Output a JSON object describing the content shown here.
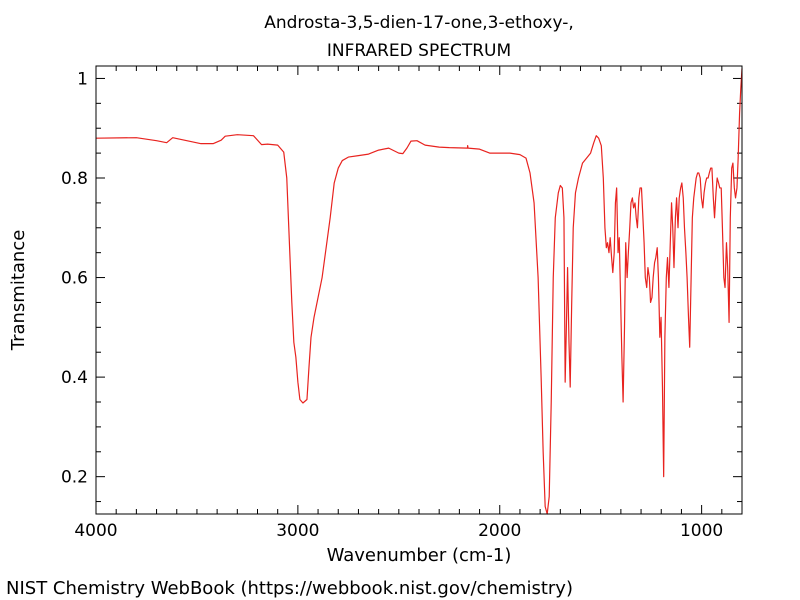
{
  "chart_data": {
    "type": "line",
    "title_line1": "Androsta-3,5-dien-17-one,3-ethoxy-,",
    "title_line2": "INFRARED SPECTRUM",
    "xlabel": "Wavenumber (cm-1)",
    "ylabel": "Transmitance",
    "xlim": [
      4000,
      800
    ],
    "ylim": [
      0.125,
      1.025
    ],
    "x_ticks": [
      4000,
      3000,
      2000,
      1000
    ],
    "x_tick_labels": [
      "4000",
      "3000",
      "2000",
      "1000"
    ],
    "y_ticks": [
      0.2,
      0.4,
      0.6,
      0.8,
      1.0
    ],
    "y_tick_labels": [
      "0.2",
      "0.4",
      "0.6",
      "0.8",
      "1"
    ],
    "grid": false,
    "series": [
      {
        "name": "IR spectrum",
        "color": "#e8231f",
        "points": [
          [
            4000,
            0.88
          ],
          [
            3800,
            0.881
          ],
          [
            3700,
            0.875
          ],
          [
            3650,
            0.871
          ],
          [
            3620,
            0.881
          ],
          [
            3550,
            0.875
          ],
          [
            3480,
            0.869
          ],
          [
            3420,
            0.869
          ],
          [
            3380,
            0.876
          ],
          [
            3360,
            0.884
          ],
          [
            3300,
            0.887
          ],
          [
            3220,
            0.885
          ],
          [
            3180,
            0.867
          ],
          [
            3150,
            0.868
          ],
          [
            3100,
            0.866
          ],
          [
            3070,
            0.852
          ],
          [
            3055,
            0.8
          ],
          [
            3045,
            0.7
          ],
          [
            3030,
            0.55
          ],
          [
            3020,
            0.47
          ],
          [
            3010,
            0.44
          ],
          [
            3000,
            0.39
          ],
          [
            2990,
            0.355
          ],
          [
            2975,
            0.348
          ],
          [
            2955,
            0.355
          ],
          [
            2945,
            0.42
          ],
          [
            2935,
            0.48
          ],
          [
            2920,
            0.52
          ],
          [
            2900,
            0.56
          ],
          [
            2880,
            0.6
          ],
          [
            2860,
            0.66
          ],
          [
            2840,
            0.72
          ],
          [
            2820,
            0.79
          ],
          [
            2800,
            0.82
          ],
          [
            2780,
            0.835
          ],
          [
            2750,
            0.842
          ],
          [
            2700,
            0.845
          ],
          [
            2650,
            0.848
          ],
          [
            2600,
            0.856
          ],
          [
            2550,
            0.86
          ],
          [
            2500,
            0.85
          ],
          [
            2480,
            0.849
          ],
          [
            2460,
            0.86
          ],
          [
            2440,
            0.874
          ],
          [
            2410,
            0.875
          ],
          [
            2370,
            0.866
          ],
          [
            2300,
            0.862
          ],
          [
            2250,
            0.861
          ],
          [
            2160,
            0.86
          ],
          [
            2159,
            0.865
          ],
          [
            2157,
            0.86
          ],
          [
            2100,
            0.858
          ],
          [
            2050,
            0.85
          ],
          [
            2000,
            0.85
          ],
          [
            1950,
            0.85
          ],
          [
            1900,
            0.847
          ],
          [
            1870,
            0.84
          ],
          [
            1850,
            0.81
          ],
          [
            1830,
            0.75
          ],
          [
            1810,
            0.6
          ],
          [
            1795,
            0.4
          ],
          [
            1785,
            0.25
          ],
          [
            1775,
            0.14
          ],
          [
            1765,
            0.125
          ],
          [
            1755,
            0.16
          ],
          [
            1745,
            0.35
          ],
          [
            1735,
            0.6
          ],
          [
            1725,
            0.72
          ],
          [
            1710,
            0.77
          ],
          [
            1700,
            0.785
          ],
          [
            1690,
            0.78
          ],
          [
            1682,
            0.72
          ],
          [
            1676,
            0.39
          ],
          [
            1670,
            0.5
          ],
          [
            1664,
            0.62
          ],
          [
            1657,
            0.47
          ],
          [
            1651,
            0.38
          ],
          [
            1644,
            0.54
          ],
          [
            1636,
            0.7
          ],
          [
            1625,
            0.77
          ],
          [
            1610,
            0.8
          ],
          [
            1590,
            0.83
          ],
          [
            1570,
            0.84
          ],
          [
            1550,
            0.85
          ],
          [
            1535,
            0.87
          ],
          [
            1522,
            0.885
          ],
          [
            1510,
            0.88
          ],
          [
            1497,
            0.865
          ],
          [
            1487,
            0.8
          ],
          [
            1479,
            0.7
          ],
          [
            1472,
            0.66
          ],
          [
            1466,
            0.67
          ],
          [
            1459,
            0.65
          ],
          [
            1453,
            0.68
          ],
          [
            1446,
            0.64
          ],
          [
            1440,
            0.61
          ],
          [
            1433,
            0.65
          ],
          [
            1427,
            0.75
          ],
          [
            1421,
            0.78
          ],
          [
            1414,
            0.65
          ],
          [
            1408,
            0.68
          ],
          [
            1401,
            0.55
          ],
          [
            1395,
            0.44
          ],
          [
            1389,
            0.35
          ],
          [
            1382,
            0.5
          ],
          [
            1376,
            0.67
          ],
          [
            1369,
            0.6
          ],
          [
            1363,
            0.65
          ],
          [
            1356,
            0.7
          ],
          [
            1350,
            0.75
          ],
          [
            1343,
            0.76
          ],
          [
            1337,
            0.74
          ],
          [
            1330,
            0.75
          ],
          [
            1324,
            0.72
          ],
          [
            1318,
            0.7
          ],
          [
            1311,
            0.76
          ],
          [
            1305,
            0.78
          ],
          [
            1298,
            0.78
          ],
          [
            1292,
            0.73
          ],
          [
            1285,
            0.67
          ],
          [
            1279,
            0.6
          ],
          [
            1272,
            0.58
          ],
          [
            1266,
            0.62
          ],
          [
            1259,
            0.6
          ],
          [
            1253,
            0.55
          ],
          [
            1246,
            0.56
          ],
          [
            1240,
            0.6
          ],
          [
            1233,
            0.63
          ],
          [
            1227,
            0.64
          ],
          [
            1220,
            0.66
          ],
          [
            1214,
            0.6
          ],
          [
            1207,
            0.48
          ],
          [
            1201,
            0.52
          ],
          [
            1194,
            0.38
          ],
          [
            1188,
            0.2
          ],
          [
            1182,
            0.48
          ],
          [
            1175,
            0.6
          ],
          [
            1169,
            0.64
          ],
          [
            1162,
            0.58
          ],
          [
            1156,
            0.66
          ],
          [
            1149,
            0.75
          ],
          [
            1143,
            0.7
          ],
          [
            1137,
            0.62
          ],
          [
            1130,
            0.72
          ],
          [
            1124,
            0.76
          ],
          [
            1117,
            0.7
          ],
          [
            1111,
            0.76
          ],
          [
            1104,
            0.78
          ],
          [
            1098,
            0.79
          ],
          [
            1091,
            0.76
          ],
          [
            1085,
            0.7
          ],
          [
            1078,
            0.65
          ],
          [
            1072,
            0.6
          ],
          [
            1065,
            0.52
          ],
          [
            1059,
            0.46
          ],
          [
            1052,
            0.6
          ],
          [
            1046,
            0.72
          ],
          [
            1039,
            0.76
          ],
          [
            1033,
            0.78
          ],
          [
            1027,
            0.8
          ],
          [
            1020,
            0.81
          ],
          [
            1014,
            0.81
          ],
          [
            1007,
            0.8
          ],
          [
            1001,
            0.76
          ],
          [
            994,
            0.74
          ],
          [
            988,
            0.77
          ],
          [
            981,
            0.79
          ],
          [
            975,
            0.8
          ],
          [
            968,
            0.8
          ],
          [
            962,
            0.81
          ],
          [
            955,
            0.82
          ],
          [
            949,
            0.82
          ],
          [
            942,
            0.76
          ],
          [
            936,
            0.72
          ],
          [
            929,
            0.77
          ],
          [
            923,
            0.8
          ],
          [
            916,
            0.79
          ],
          [
            910,
            0.78
          ],
          [
            903,
            0.78
          ],
          [
            897,
            0.7
          ],
          [
            890,
            0.6
          ],
          [
            884,
            0.58
          ],
          [
            877,
            0.67
          ],
          [
            871,
            0.62
          ],
          [
            864,
            0.51
          ],
          [
            858,
            0.72
          ],
          [
            851,
            0.82
          ],
          [
            845,
            0.83
          ],
          [
            838,
            0.78
          ],
          [
            832,
            0.76
          ],
          [
            825,
            0.78
          ],
          [
            819,
            0.84
          ],
          [
            812,
            0.93
          ],
          [
            806,
            0.98
          ],
          [
            800,
            1.02
          ]
        ]
      }
    ]
  },
  "footer": {
    "credit": "NIST Chemistry WebBook (https://webbook.nist.gov/chemistry)"
  }
}
